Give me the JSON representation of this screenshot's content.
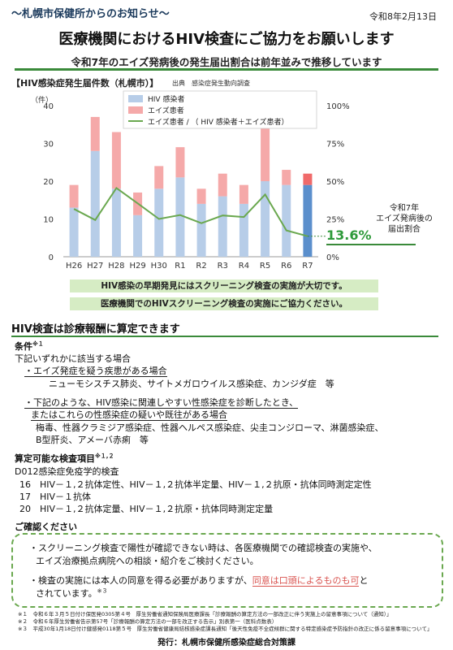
{
  "header": {
    "org_notice": "〜札幌市保健所からのお知らせ〜",
    "date": "令和8年2月13日",
    "title": "医療機関におけるHIV検査にご協力をお願いします",
    "subtitle": "令和7年のエイズ発病後の発生届出割合は前年並みで推移しています"
  },
  "chart_section": {
    "title": "【HIV感染症発生届件数（札幌市）】",
    "source": "出典　感染症発生動向調査"
  },
  "chart_data": {
    "type": "bar",
    "stacked": true,
    "categories": [
      "H26",
      "H27",
      "H28",
      "H29",
      "H30",
      "R1",
      "R2",
      "R3",
      "R4",
      "R5",
      "R6",
      "R7"
    ],
    "series": [
      {
        "name": "HIV 感染者",
        "values": [
          13,
          28,
          18,
          11,
          18,
          21,
          14,
          16,
          14,
          20,
          19,
          19
        ],
        "color": "#b7cde8",
        "highlight_color": "#5b8fcc"
      },
      {
        "name": "エイズ患者",
        "values": [
          6,
          9,
          15,
          6,
          6,
          8,
          4,
          6,
          5,
          14,
          4,
          3
        ],
        "color": "#f5a9a9",
        "highlight_color": "#f06a6a"
      },
      {
        "name": "エイズ患者 / （ HIV 感染者＋エイズ患者）",
        "values": [
          31.6,
          24.3,
          45.5,
          35.3,
          25.0,
          27.6,
          22.2,
          27.3,
          26.3,
          41.2,
          17.4,
          13.6
        ],
        "color": "#6aa84f",
        "axis": "right"
      }
    ],
    "ylabel": "（件）",
    "ylim": [
      0,
      40
    ],
    "yticks": [
      0,
      10,
      20,
      30,
      40
    ],
    "y2lim": [
      0,
      100
    ],
    "y2ticks": [
      "0%",
      "25%",
      "50%",
      "75%",
      "100%"
    ],
    "grid": false,
    "legend": "top-center",
    "highlight_category": "R7"
  },
  "callout": {
    "line1": "令和7年",
    "line2": "エイズ発病後の",
    "line3": "届出割合",
    "value": "13.6%"
  },
  "banners": [
    "HIV感染の早期発見にはスクリーニング検査の実施が大切です。",
    "医療機関でのHIVスクリーニング検査の実施にご協力ください。"
  ],
  "section": {
    "title": "HIV検査は診療報酬に算定できます",
    "conditions_head": "条件",
    "conditions_note": "※１",
    "conditions_lead": "下記いずれかに該当する場合",
    "cond1_head": "・エイズ発症を疑う疾患がある場合",
    "cond1_body": "ニューモシスチス肺炎、サイトメガロウイルス感染症、カンジダ症　等",
    "cond2_head1": "・下記のような、HIV感染に関連しやすい性感染症を診断したとき、",
    "cond2_head2": "またはこれらの性感染症の疑いや既往がある場合",
    "cond2_body1": "梅毒、性器クラミジア感染症、性器ヘルペス感染症、尖圭コンジローマ、淋菌感染症、",
    "cond2_body2": "B型肝炎、アメーバ赤痢　等",
    "items_head": "算定可能な検査項目",
    "items_note": "※１,２",
    "items_lead": "D012感染症免疫学的検査",
    "item1": "16　HIV－１,２抗体定性、HIV－１,２抗体半定量、HIV－１,２抗原・抗体同時測定定性",
    "item2": "17　HIV－１抗体",
    "item3": "20　HIV－１,２抗体定量、HIV－１,２抗原・抗体同時測定定量"
  },
  "confirm": {
    "title": "ご確認ください",
    "line1": "・スクリーニング検査で陽性が確認できない時は、各医療機関での確認検査の実施や、",
    "line2": "エイズ治療拠点病院への相談・紹介をご検討ください。",
    "line3a": "・検査の実施には本人の同意を得る必要がありますが、",
    "line3b": "同意は口頭によるものも可",
    "line3c": "と",
    "line4": "されています。",
    "note": "※３"
  },
  "footnotes": [
    "※１　令和６年３月５日付け保医発0305第４号　厚生労働省通知保険局医療課長「診療報酬の算定方法の一部改正に伴う実施上の留意事項について（通知）」",
    "※２　令和６年厚生労働省告示第57号「診療報酬の算定方法の一部を改正する告示」別表第一（医科点数表）",
    "※３　平成30年1月18日付け健感発0118第５号　厚生労働省健康局結核感染症課長通知「後天性免疫不全症候群に関する特定感染症予防指針の改正に係る留意事項について」"
  ],
  "publisher": "発行：札幌市保健所感染症総合対策課"
}
